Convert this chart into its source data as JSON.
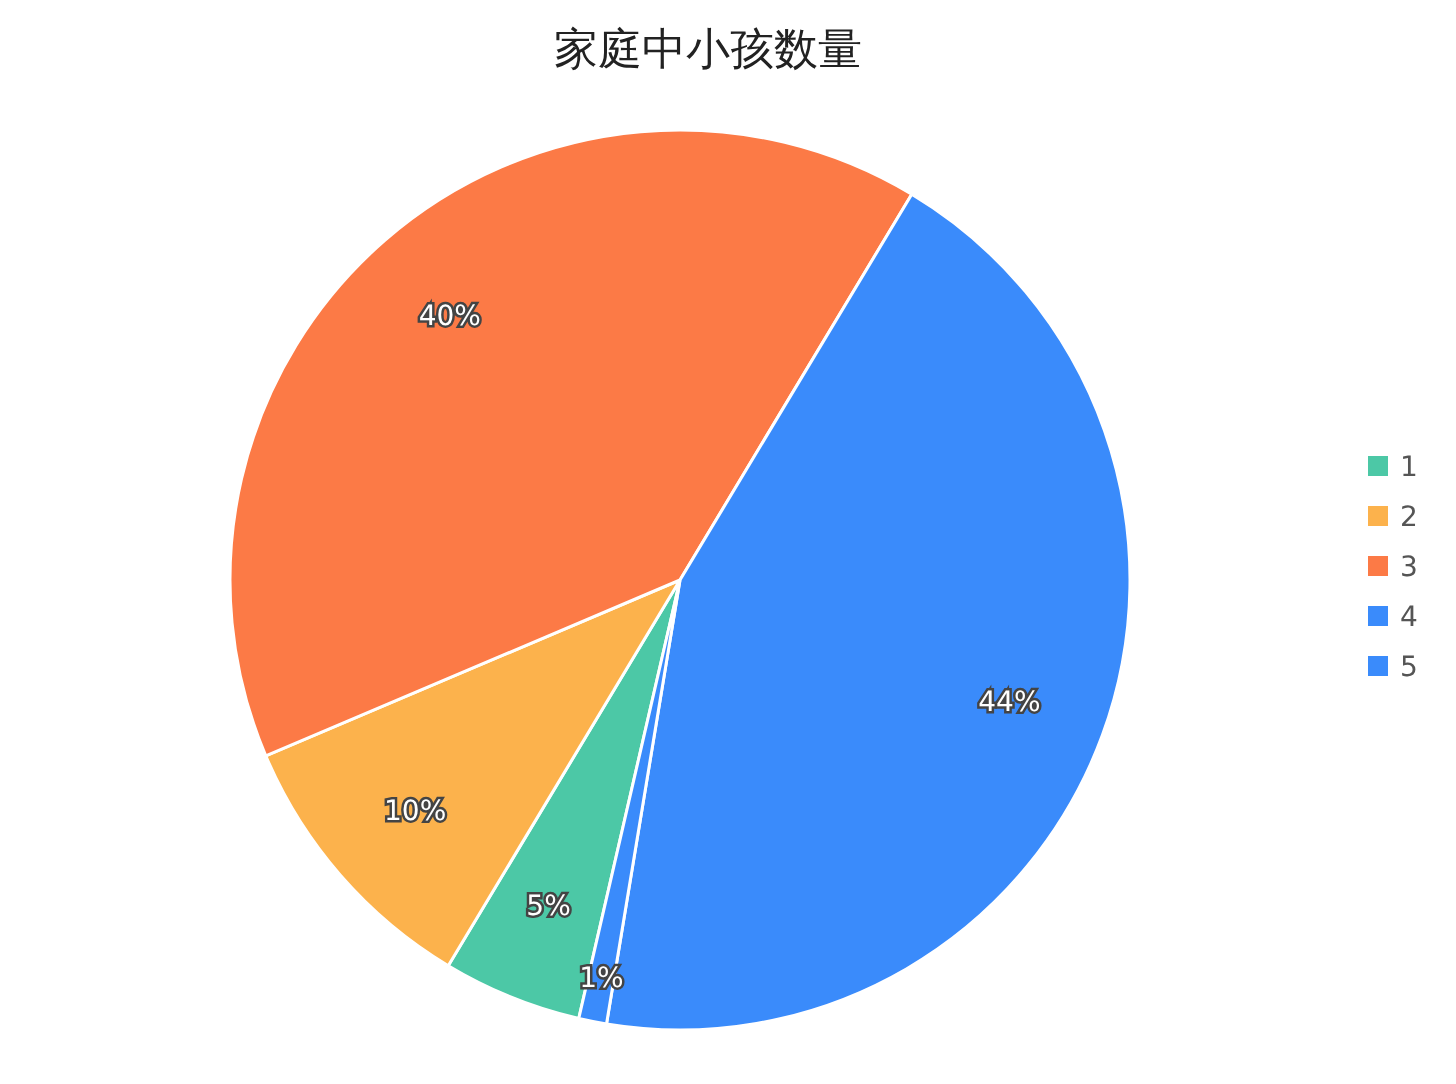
{
  "chart_data": {
    "type": "pie",
    "title": "家庭中小孩数量",
    "categories": [
      "1",
      "2",
      "3",
      "4",
      "5"
    ],
    "values": [
      5,
      10,
      40,
      44,
      1
    ],
    "colors": [
      "#4cc8a6",
      "#fcb24c",
      "#fc7a46",
      "#3a8bfb",
      "#3a8bfb"
    ],
    "data_labels": true,
    "value_labels": [
      "5%",
      "10%",
      "40%",
      "44%",
      "1%"
    ],
    "legend": "right"
  }
}
